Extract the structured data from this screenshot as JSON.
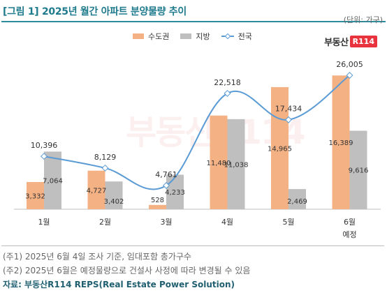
{
  "title": "[그림 1] 2025년 월간 아파트 분양물량 추이",
  "unit": "(단위: 가구)",
  "logo": {
    "text": "부동산",
    "badge": "R114"
  },
  "watermark": "부동산R114",
  "notes": [
    "(주1) 2025년 6월 4일 조사 기준, 임대포함 총가구수",
    "(주2) 2025년 6월은 예정물량으로 건설사 사정에 따라 변경될 수 있음"
  ],
  "source": "자료: 부동산R114 REPS(Real Estate Power Solution)",
  "colors": {
    "capital": "#f4b183",
    "local": "#bfbfbf",
    "national": "#5b9bd5",
    "title": "#1f7a8c"
  },
  "chart_data": {
    "type": "bar",
    "categories": [
      "1월",
      "2월",
      "3월",
      "4월",
      "5월",
      "6월\n예정"
    ],
    "series": [
      {
        "name": "수도권",
        "type": "bar",
        "values": [
          3332,
          4727,
          528,
          11480,
          14965,
          16389
        ]
      },
      {
        "name": "지방",
        "type": "bar",
        "values": [
          7064,
          3402,
          4233,
          11038,
          2469,
          9616
        ]
      },
      {
        "name": "전국",
        "type": "line",
        "values": [
          10396,
          8129,
          4761,
          22518,
          17434,
          26005
        ]
      }
    ],
    "legend": "top-center",
    "grid": false
  }
}
